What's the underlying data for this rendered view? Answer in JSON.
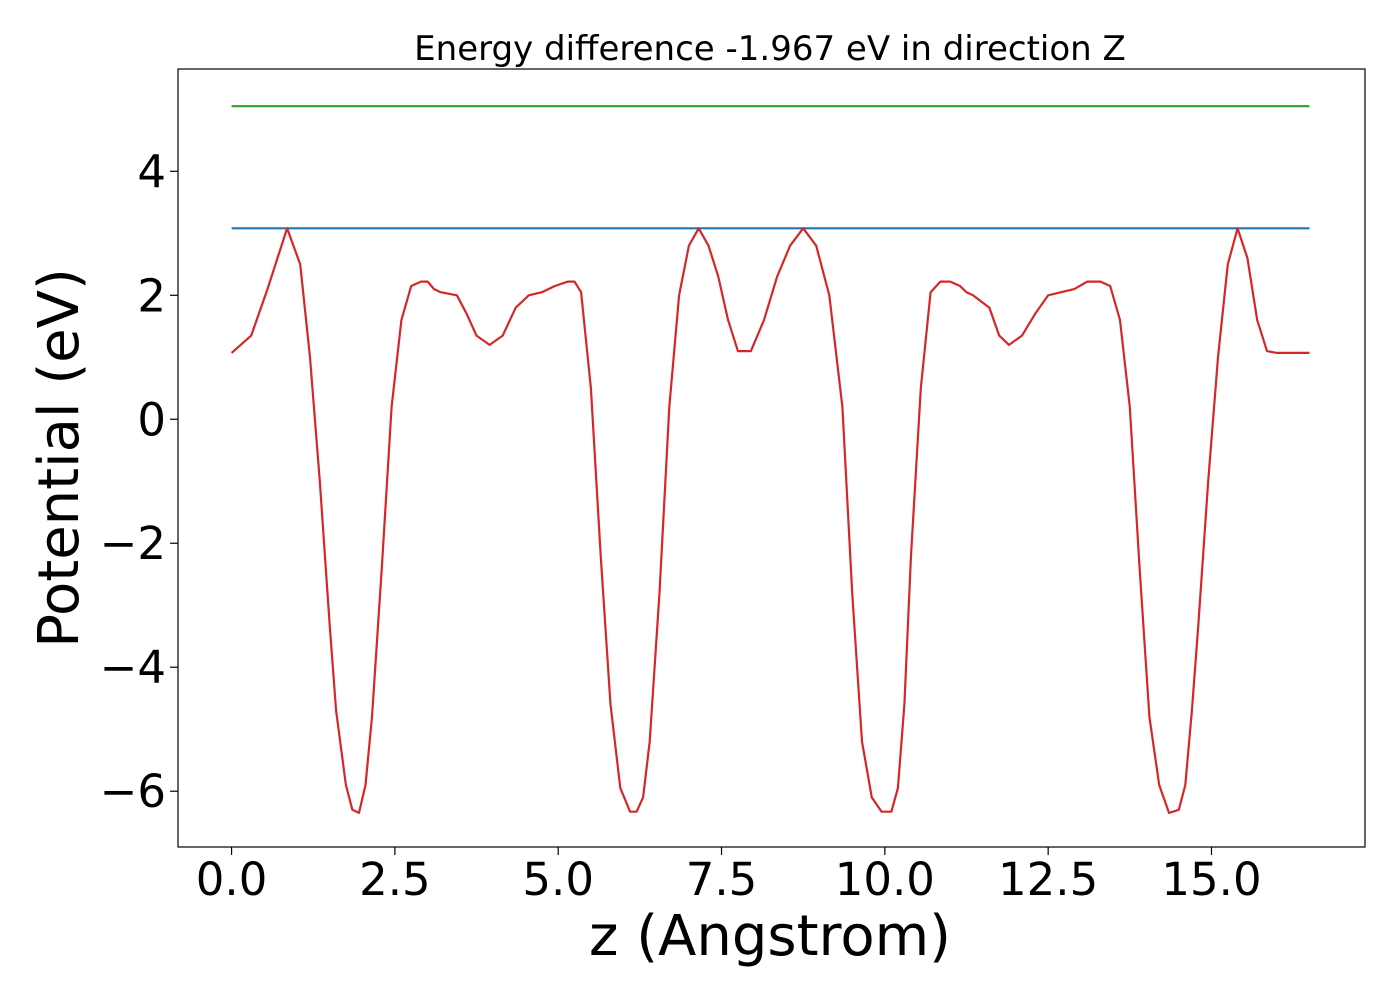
{
  "chart_data": {
    "type": "line",
    "title": "Energy difference -1.967 eV in direction Z",
    "xlabel": "z (Angstrom)",
    "ylabel": "Potential (eV)",
    "xlim": [
      -0.82,
      17.35
    ],
    "ylim": [
      -6.9,
      5.65
    ],
    "xticks": [
      0.0,
      2.5,
      5.0,
      7.5,
      10.0,
      12.5,
      15.0
    ],
    "xtick_labels": [
      "0.0",
      "2.5",
      "5.0",
      "7.5",
      "10.0",
      "12.5",
      "15.0"
    ],
    "yticks": [
      4,
      2,
      0,
      -2,
      -4,
      -6
    ],
    "ytick_labels": [
      "4",
      "2",
      "0",
      "−2",
      "−4",
      "−6"
    ],
    "grid": false,
    "series": [
      {
        "color": "#2ca02c",
        "x": [
          0.0,
          16.5
        ],
        "y": [
          5.05,
          5.05
        ]
      },
      {
        "color": "#1f77b4",
        "x": [
          0.0,
          16.5
        ],
        "y": [
          3.08,
          3.08
        ]
      },
      {
        "color": "#d62728",
        "x": [
          0.0,
          0.3,
          0.55,
          0.85,
          1.05,
          1.2,
          1.35,
          1.5,
          1.6,
          1.75,
          1.85,
          1.95,
          2.05,
          2.15,
          2.3,
          2.45,
          2.6,
          2.75,
          2.9,
          3.0,
          3.1,
          3.2,
          3.45,
          3.6,
          3.75,
          3.95,
          4.15,
          4.35,
          4.55,
          4.75,
          4.95,
          5.15,
          5.25,
          5.35,
          5.5,
          5.65,
          5.8,
          5.95,
          6.1,
          6.2,
          6.3,
          6.4,
          6.55,
          6.7,
          6.85,
          7.0,
          7.15,
          7.3,
          7.45,
          7.6,
          7.75,
          7.95,
          8.15,
          8.35,
          8.55,
          8.75,
          8.95,
          9.15,
          9.35,
          9.5,
          9.65,
          9.8,
          9.95,
          10.1,
          10.2,
          10.3,
          10.4,
          10.55,
          10.7,
          10.85,
          11.0,
          11.15,
          11.25,
          11.35,
          11.6,
          11.75,
          11.9,
          12.1,
          12.3,
          12.5,
          12.7,
          12.9,
          13.1,
          13.3,
          13.45,
          13.6,
          13.75,
          13.9,
          14.05,
          14.2,
          14.35,
          14.5,
          14.6,
          14.7,
          14.8,
          14.95,
          15.1,
          15.25,
          15.4,
          15.55,
          15.7,
          15.85,
          16.0,
          16.2,
          16.4,
          16.5
        ],
        "y": [
          1.07,
          1.35,
          2.1,
          3.08,
          2.5,
          1.0,
          -1.0,
          -3.3,
          -4.7,
          -5.9,
          -6.3,
          -6.35,
          -5.9,
          -4.8,
          -2.4,
          0.2,
          1.6,
          2.15,
          2.22,
          2.22,
          2.1,
          2.05,
          2.0,
          1.7,
          1.35,
          1.2,
          1.35,
          1.8,
          2.0,
          2.05,
          2.15,
          2.22,
          2.22,
          2.05,
          0.5,
          -2.2,
          -4.6,
          -5.95,
          -6.33,
          -6.33,
          -6.1,
          -5.2,
          -2.8,
          0.2,
          2.0,
          2.8,
          3.08,
          2.8,
          2.3,
          1.6,
          1.1,
          1.1,
          1.6,
          2.3,
          2.8,
          3.08,
          2.8,
          2.0,
          0.2,
          -2.8,
          -5.2,
          -6.1,
          -6.33,
          -6.33,
          -5.95,
          -4.6,
          -2.2,
          0.5,
          2.05,
          2.22,
          2.22,
          2.15,
          2.05,
          2.0,
          1.8,
          1.35,
          1.2,
          1.35,
          1.7,
          2.0,
          2.05,
          2.1,
          2.22,
          2.22,
          2.15,
          1.6,
          0.2,
          -2.4,
          -4.8,
          -5.9,
          -6.35,
          -6.3,
          -5.9,
          -4.7,
          -3.3,
          -1.0,
          1.0,
          2.5,
          3.08,
          2.6,
          1.6,
          1.1,
          1.07,
          1.07,
          1.07,
          1.07
        ]
      }
    ]
  }
}
